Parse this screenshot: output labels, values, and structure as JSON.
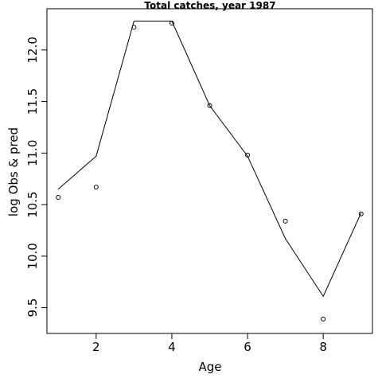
{
  "chart_data": {
    "type": "line",
    "title": "Total catches, year 1987",
    "xlabel": "Age",
    "ylabel": "log Obs & pred",
    "xlim": [
      0.7,
      9.3
    ],
    "ylim": [
      9.25,
      12.4
    ],
    "x_ticks": [
      2,
      4,
      6,
      8
    ],
    "y_ticks": [
      9.5,
      10.0,
      10.5,
      11.0,
      11.5,
      12.0
    ],
    "x_tick_labels": [
      "2",
      "4",
      "6",
      "8"
    ],
    "y_tick_labels": [
      "9.5",
      "10.0",
      "10.5",
      "11.0",
      "11.5",
      "12.0"
    ],
    "grid": false,
    "series": [
      {
        "style": "points",
        "x": [
          1,
          2,
          3,
          4,
          5,
          6,
          7,
          8,
          9
        ],
        "y": [
          10.57,
          10.67,
          12.22,
          12.26,
          11.46,
          10.98,
          10.34,
          9.39,
          10.41
        ]
      },
      {
        "style": "line",
        "x": [
          1,
          2,
          3,
          4,
          5,
          6,
          7,
          8,
          9
        ],
        "y": [
          10.65,
          10.97,
          12.28,
          12.28,
          11.46,
          10.97,
          10.17,
          9.61,
          10.42
        ]
      }
    ]
  }
}
